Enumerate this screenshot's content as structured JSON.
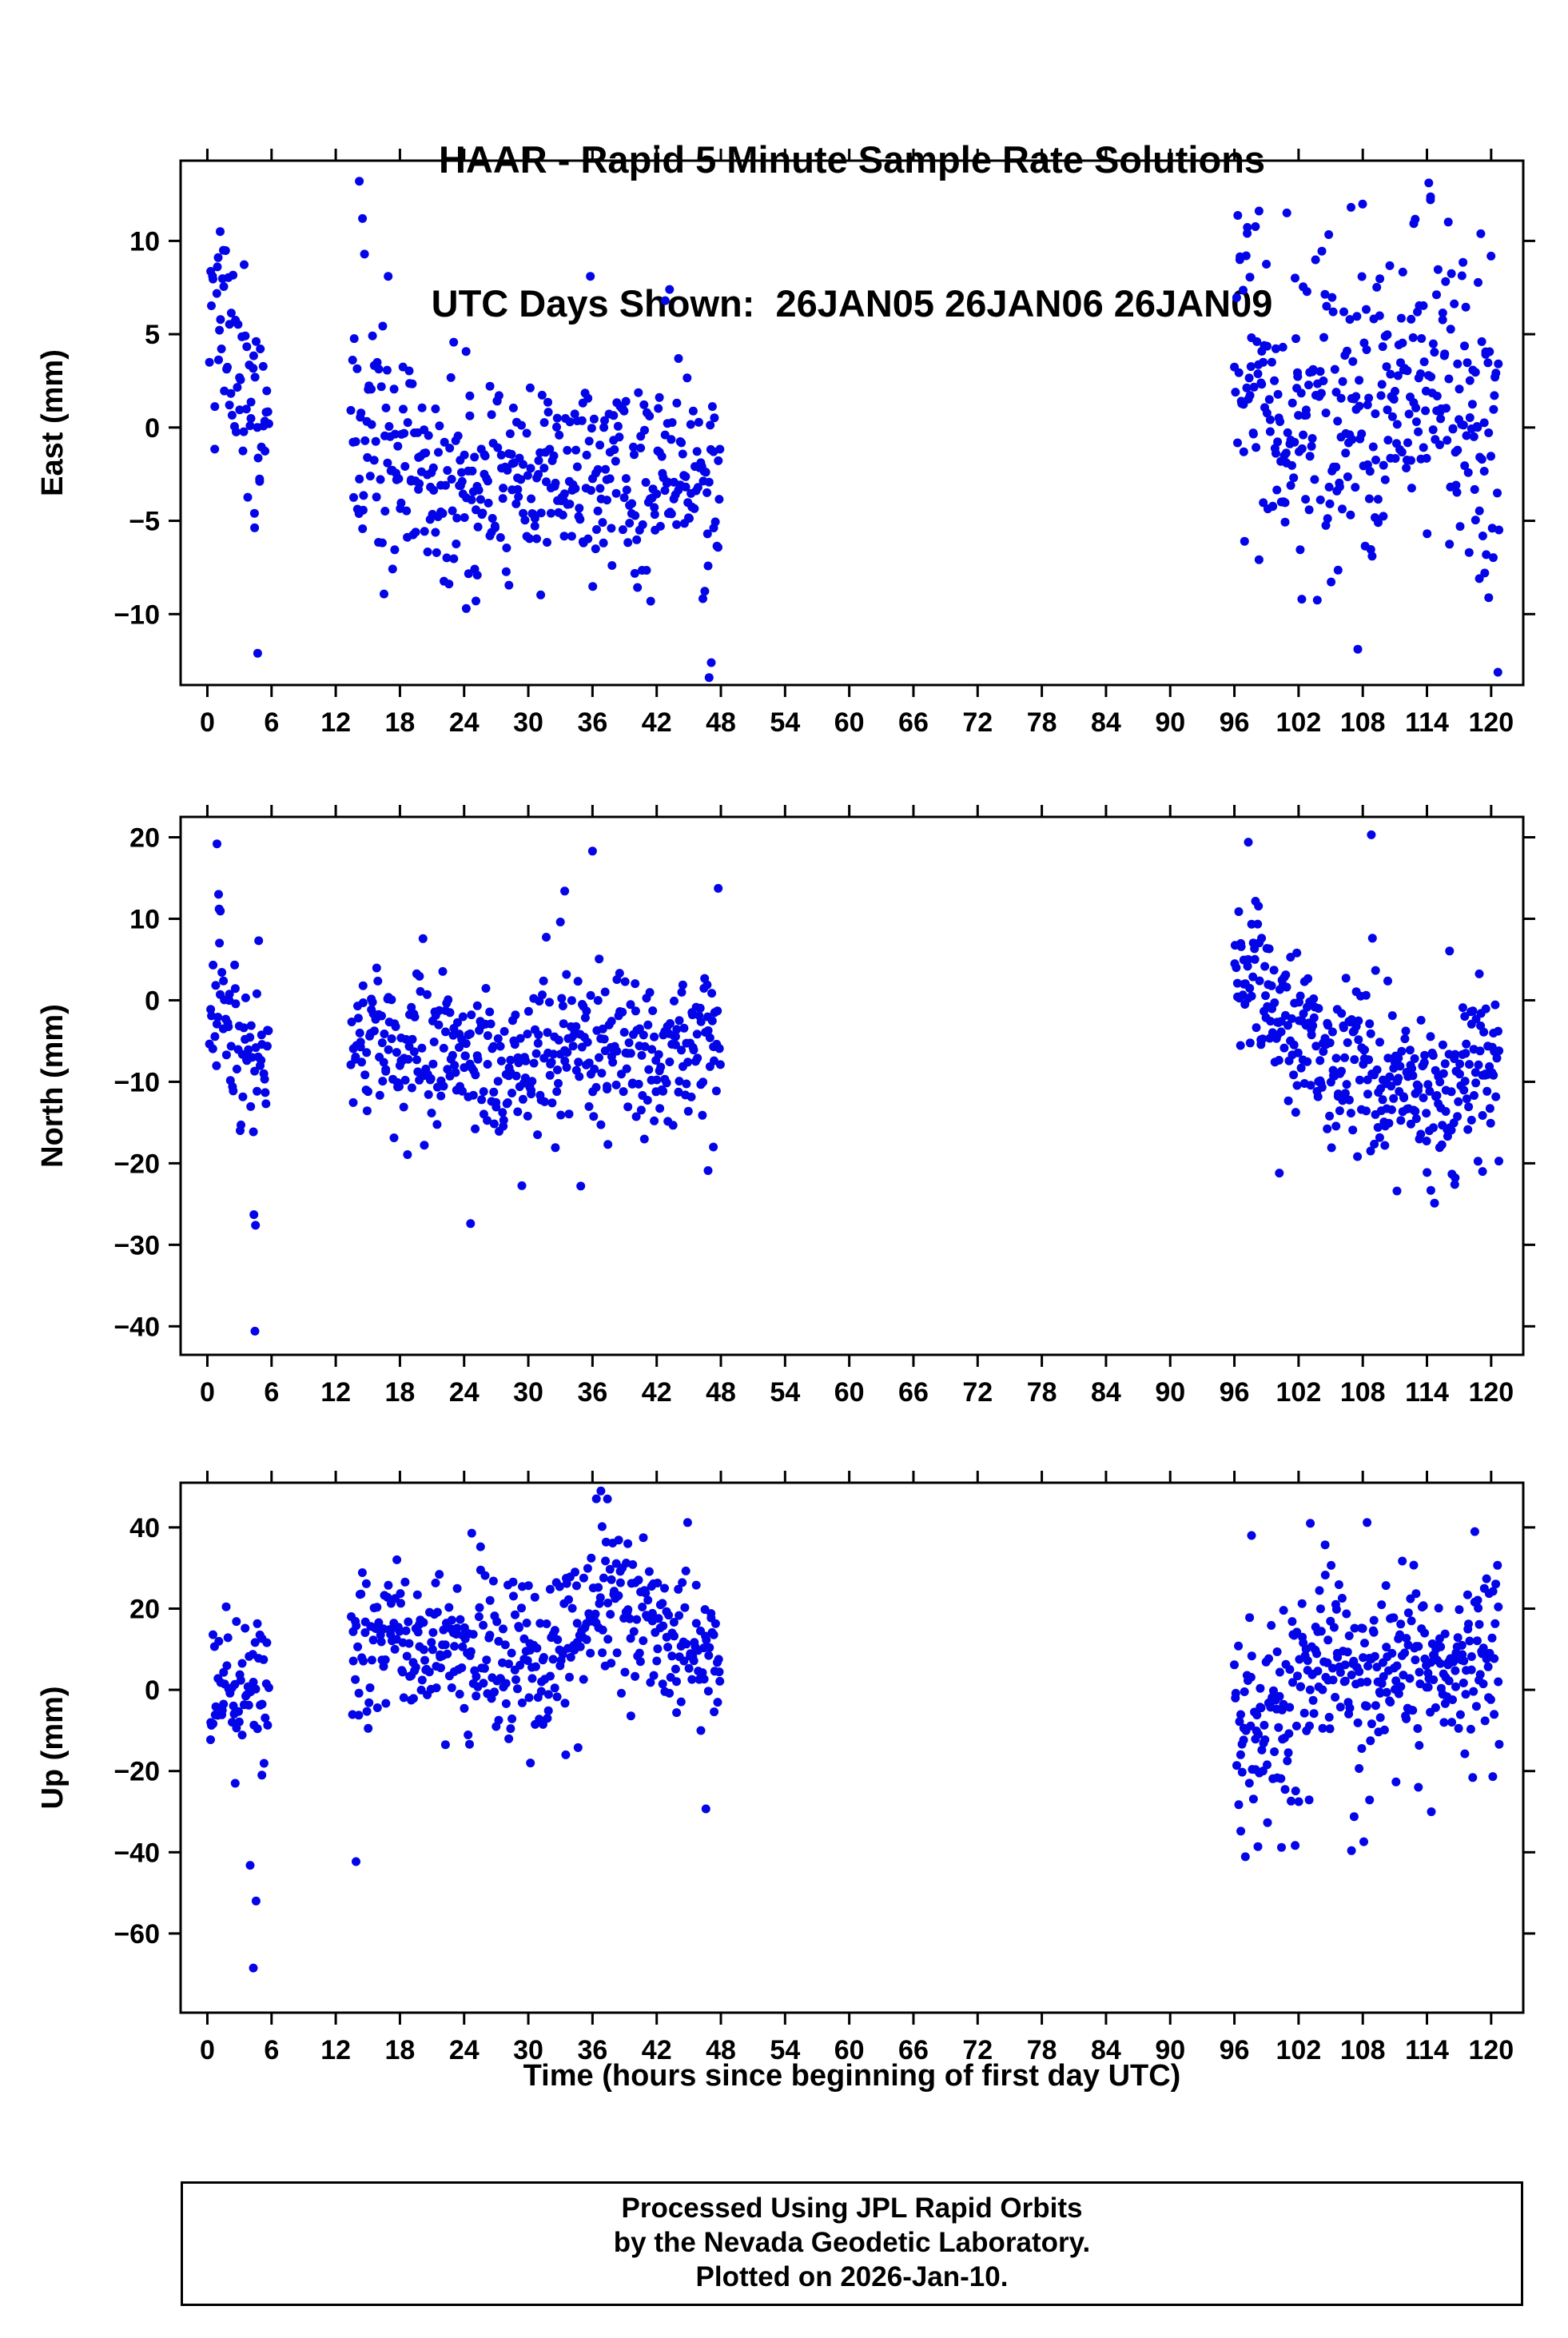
{
  "title": {
    "line1": "HAAR - Rapid 5 Minute Sample Rate Solutions",
    "line2": "UTC Days Shown:  26JAN05 26JAN06 26JAN09"
  },
  "xlabel": "Time (hours since beginning of first day UTC)",
  "footer": {
    "line1": "Processed Using JPL Rapid Orbits",
    "line2": "by the Nevada Geodetic Laboratory.",
    "line3": "Plotted on 2026-Jan-10."
  },
  "colors": {
    "dot": "#0404e8",
    "frame": "#000000",
    "background": "#ffffff"
  },
  "chart_data": [
    {
      "name": "east",
      "type": "scatter",
      "station": "HAAR",
      "days_shown": [
        "26JAN05",
        "26JAN06",
        "26JAN09"
      ],
      "ylabel": "East (mm)",
      "ylim": [
        -13.8,
        14.3
      ],
      "yticks": [
        -10,
        -5,
        0,
        5,
        10
      ],
      "xlim": [
        -2.5,
        123
      ],
      "xticks": [
        0,
        6,
        12,
        18,
        24,
        30,
        36,
        42,
        48,
        54,
        60,
        66,
        72,
        78,
        84,
        90,
        96,
        102,
        108,
        114,
        120
      ],
      "grid": false,
      "legend": "none",
      "seed": 101,
      "clusters": [
        {
          "t": [
            0.2,
            5.8
          ],
          "n": 66,
          "sigma": 2.9,
          "mean": [
            [
              0.2,
              5.5
            ],
            [
              1.5,
              5.0
            ],
            [
              2.5,
              3.0
            ],
            [
              4.0,
              1.5
            ],
            [
              5.8,
              1.5
            ]
          ],
          "outliers": [
            [
              4.7,
              -12.1
            ],
            [
              4.4,
              -4.6
            ],
            [
              1.2,
              10.5
            ],
            [
              1.5,
              9.5
            ]
          ]
        },
        {
          "t": [
            13.4,
            48.0
          ],
          "n": 410,
          "sigma": 2.8,
          "mean": [
            [
              13.4,
              -0.5
            ],
            [
              16,
              -0.5
            ],
            [
              20,
              -2.5
            ],
            [
              24,
              -3.0
            ],
            [
              28,
              -1.5
            ],
            [
              31,
              -3.0
            ],
            [
              36,
              -2.0
            ],
            [
              40,
              -3.0
            ],
            [
              44,
              -2.0
            ],
            [
              48,
              -3.5
            ]
          ],
          "outliers": [
            [
              14.2,
              13.2
            ],
            [
              14.5,
              11.2
            ],
            [
              16.9,
              8.1
            ],
            [
              35.8,
              8.1
            ],
            [
              46.9,
              -13.4
            ],
            [
              47.1,
              -12.6
            ],
            [
              24.2,
              -9.7
            ],
            [
              25.1,
              -9.3
            ],
            [
              43.2,
              7.4
            ],
            [
              42.8,
              6.8
            ]
          ]
        },
        {
          "t": [
            96.0,
            120.8
          ],
          "n": 340,
          "sigma": 3.9,
          "mean": [
            [
              96,
              4.5
            ],
            [
              98,
              4.0
            ],
            [
              100,
              -0.5
            ],
            [
              102,
              -1.0
            ],
            [
              104,
              1.0
            ],
            [
              106,
              1.5
            ],
            [
              108,
              0.5
            ],
            [
              110,
              1.0
            ],
            [
              112,
              1.5
            ],
            [
              114,
              2.0
            ],
            [
              116,
              2.0
            ],
            [
              118,
              0.5
            ],
            [
              120.8,
              -1.5
            ]
          ],
          "outliers": [
            [
              97.2,
              10.4
            ],
            [
              98.3,
              11.6
            ],
            [
              100.9,
              11.5
            ],
            [
              106.9,
              11.8
            ],
            [
              102.3,
              -9.2
            ],
            [
              118.9,
              -8.1
            ],
            [
              119.4,
              -7.8
            ]
          ]
        }
      ]
    },
    {
      "name": "north",
      "type": "scatter",
      "ylabel": "North (mm)",
      "ylim": [
        -43.5,
        22.5
      ],
      "yticks": [
        -40,
        -30,
        -20,
        -10,
        0,
        10,
        20
      ],
      "xlim": [
        -2.5,
        123
      ],
      "xticks": [
        0,
        6,
        12,
        18,
        24,
        30,
        36,
        42,
        48,
        54,
        60,
        66,
        72,
        78,
        84,
        90,
        96,
        102,
        108,
        114,
        120
      ],
      "grid": false,
      "legend": "none",
      "seed": 202,
      "clusters": [
        {
          "t": [
            0.2,
            5.8
          ],
          "n": 66,
          "sigma": 4.8,
          "mean": [
            [
              0.2,
              3.0
            ],
            [
              1.0,
              0.0
            ],
            [
              2.0,
              -3.0
            ],
            [
              3.5,
              -6.0
            ],
            [
              5.8,
              -8.0
            ]
          ],
          "outliers": [
            [
              0.9,
              19.2
            ],
            [
              1.05,
              13.0
            ],
            [
              1.1,
              11.2
            ],
            [
              4.35,
              -26.3
            ],
            [
              4.5,
              -27.6
            ],
            [
              4.45,
              -40.6
            ]
          ]
        },
        {
          "t": [
            13.4,
            48.0
          ],
          "n": 410,
          "sigma": 4.3,
          "mean": [
            [
              13.4,
              -5.0
            ],
            [
              18,
              -6.0
            ],
            [
              22,
              -5.5
            ],
            [
              26,
              -7.0
            ],
            [
              30,
              -7.5
            ],
            [
              34,
              -5.5
            ],
            [
              38,
              -5.0
            ],
            [
              42,
              -6.5
            ],
            [
              48,
              -6.0
            ]
          ],
          "outliers": [
            [
              33.4,
              13.4
            ],
            [
              33.0,
              9.6
            ],
            [
              24.6,
              -27.4
            ],
            [
              34.9,
              -22.8
            ],
            [
              46.8,
              -20.9
            ],
            [
              47.3,
              -18.0
            ]
          ]
        },
        {
          "t": [
            96.0,
            120.8
          ],
          "n": 340,
          "sigma": 4.6,
          "mean": [
            [
              96,
              3.5
            ],
            [
              98,
              5.0
            ],
            [
              100,
              0.0
            ],
            [
              102,
              -4.0
            ],
            [
              104,
              -6.0
            ],
            [
              106,
              -8.0
            ],
            [
              108,
              -9.0
            ],
            [
              110,
              -11.0
            ],
            [
              112,
              -12.0
            ],
            [
              114,
              -11.0
            ],
            [
              116,
              -12.0
            ],
            [
              118,
              -8.0
            ],
            [
              120.8,
              -7.0
            ]
          ],
          "outliers": [
            [
              97.3,
              19.4
            ],
            [
              108.8,
              20.3
            ],
            [
              111.2,
              -23.4
            ],
            [
              116.6,
              -22.6
            ],
            [
              119.2,
              -21.0
            ],
            [
              100.2,
              -21.2
            ]
          ]
        }
      ]
    },
    {
      "name": "up",
      "type": "scatter",
      "ylabel": "Up (mm)",
      "ylim": [
        -79.5,
        51
      ],
      "yticks": [
        -60,
        -40,
        -20,
        0,
        20,
        40
      ],
      "xlim": [
        -2.5,
        123
      ],
      "xticks": [
        0,
        6,
        12,
        18,
        24,
        30,
        36,
        42,
        48,
        54,
        60,
        66,
        72,
        78,
        84,
        90,
        96,
        102,
        108,
        114,
        120
      ],
      "grid": false,
      "legend": "none",
      "seed": 303,
      "clusters": [
        {
          "t": [
            0.2,
            5.8
          ],
          "n": 64,
          "sigma": 8.5,
          "mean": [
            [
              0.2,
              0.0
            ],
            [
              2.0,
              1.0
            ],
            [
              4.0,
              0.0
            ],
            [
              5.8,
              -2.0
            ]
          ],
          "outliers": [
            [
              4.0,
              -43.2
            ],
            [
              4.55,
              -52.0
            ],
            [
              4.3,
              -68.5
            ],
            [
              2.6,
              -23.0
            ],
            [
              5.1,
              -21.0
            ]
          ]
        },
        {
          "t": [
            13.4,
            48.0
          ],
          "n": 410,
          "sigma": 8.8,
          "mean": [
            [
              13.4,
              9.0
            ],
            [
              16,
              13.0
            ],
            [
              20,
              10.0
            ],
            [
              24,
              9.0
            ],
            [
              28,
              8.0
            ],
            [
              31,
              7.0
            ],
            [
              34,
              12.0
            ],
            [
              36,
              20.0
            ],
            [
              38,
              23.0
            ],
            [
              40,
              17.0
            ],
            [
              42,
              15.0
            ],
            [
              45,
              11.0
            ],
            [
              48,
              9.0
            ]
          ],
          "outliers": [
            [
              13.9,
              -42.3
            ],
            [
              37.4,
              47.0
            ],
            [
              36.9,
              40.2
            ],
            [
              39.3,
              36.0
            ],
            [
              46.6,
              -29.3
            ],
            [
              30.2,
              -18.0
            ],
            [
              33.5,
              -16.0
            ]
          ]
        },
        {
          "t": [
            96.0,
            120.8
          ],
          "n": 340,
          "sigma": 11.5,
          "mean": [
            [
              96,
              -2.0
            ],
            [
              98,
              -10.0
            ],
            [
              100,
              -6.0
            ],
            [
              102,
              4.0
            ],
            [
              104,
              6.0
            ],
            [
              106,
              9.0
            ],
            [
              108,
              4.0
            ],
            [
              110,
              3.0
            ],
            [
              112,
              6.0
            ],
            [
              114,
              9.0
            ],
            [
              116,
              7.0
            ],
            [
              118,
              8.0
            ],
            [
              120.8,
              13.0
            ]
          ],
          "outliers": [
            [
              97.6,
              38.0
            ],
            [
              103.1,
              41.0
            ],
            [
              108.4,
              41.2
            ],
            [
              96.6,
              -34.8
            ],
            [
              98.2,
              -38.6
            ],
            [
              100.4,
              -38.8
            ],
            [
              108.1,
              -37.4
            ],
            [
              113.2,
              -24.0
            ]
          ]
        }
      ]
    }
  ]
}
